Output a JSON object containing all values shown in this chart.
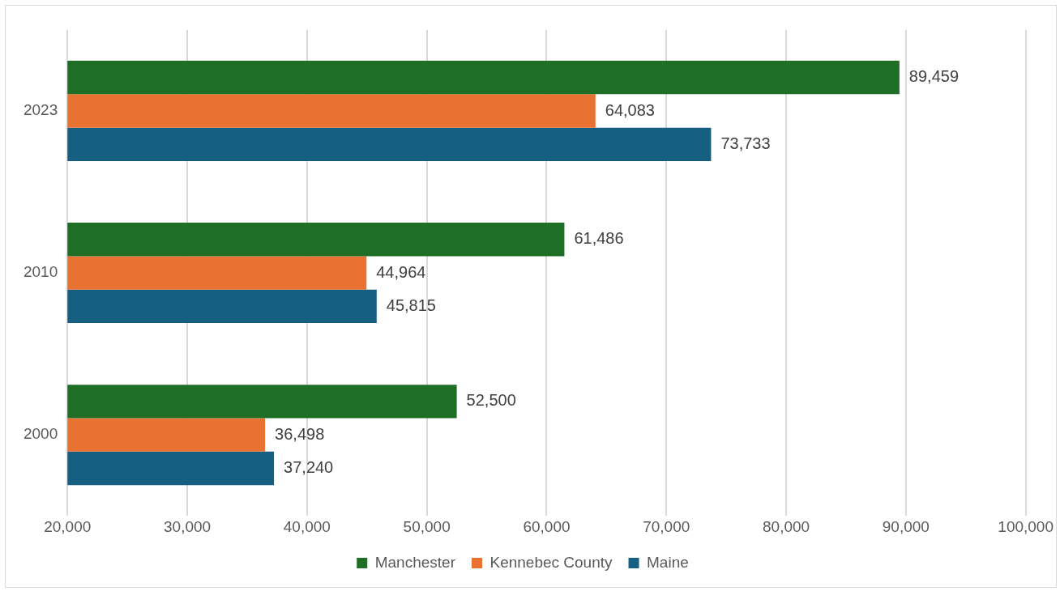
{
  "chart_data": {
    "type": "bar",
    "orientation": "horizontal",
    "categories": [
      "2023",
      "2010",
      "2000"
    ],
    "series": [
      {
        "name": "Manchester",
        "color": "#1e6e26",
        "values": [
          89459,
          61486,
          52500
        ],
        "value_labels": [
          "89,459",
          "61,486",
          "52,500"
        ]
      },
      {
        "name": "Kennebec County",
        "color": "#e97132",
        "values": [
          64083,
          44964,
          36498
        ],
        "value_labels": [
          "64,083",
          "44,964",
          "36,498"
        ]
      },
      {
        "name": "Maine",
        "color": "#156082",
        "values": [
          73733,
          45815,
          37240
        ],
        "value_labels": [
          "73,733",
          "45,815",
          "37,240"
        ]
      }
    ],
    "xlim": [
      20000,
      100000
    ],
    "xticks": [
      {
        "value": 20000,
        "label": "20,000"
      },
      {
        "value": 30000,
        "label": "30,000"
      },
      {
        "value": 40000,
        "label": "40,000"
      },
      {
        "value": 50000,
        "label": "50,000"
      },
      {
        "value": 60000,
        "label": "60,000"
      },
      {
        "value": 70000,
        "label": "70,000"
      },
      {
        "value": 80000,
        "label": "80,000"
      },
      {
        "value": 90000,
        "label": "90,000"
      },
      {
        "value": 100000,
        "label": "100,000"
      }
    ],
    "grid": "x",
    "legend": "bottom"
  }
}
